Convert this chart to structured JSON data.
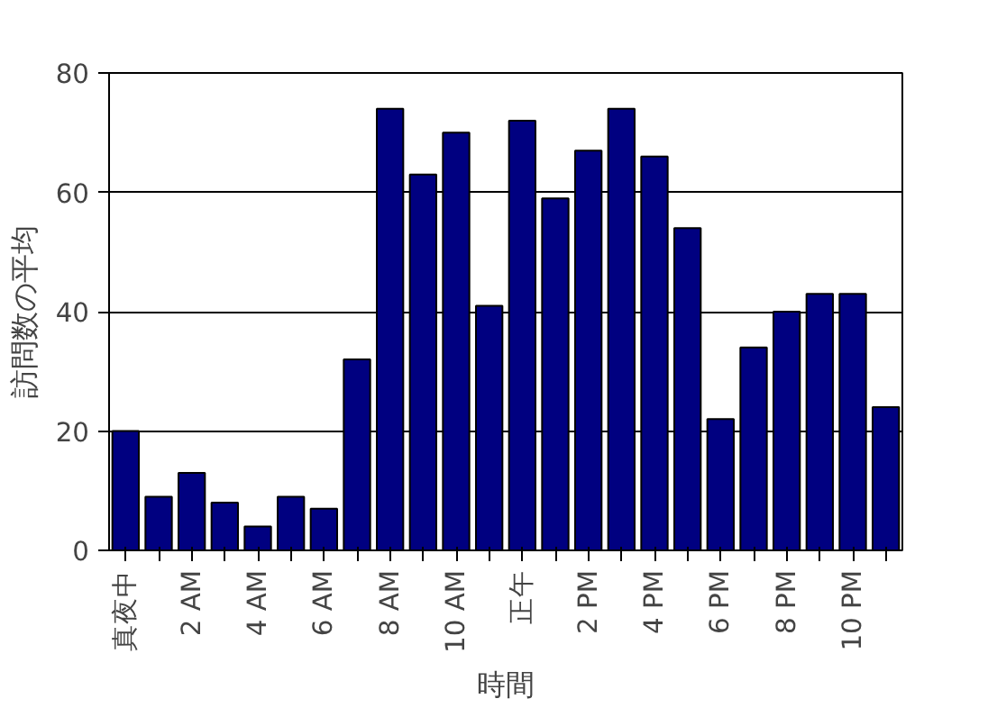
{
  "chart_data": {
    "type": "bar",
    "xlabel": "時間",
    "ylabel": "訪問数の平均",
    "categories": [
      "真夜中",
      null,
      "2 AM",
      null,
      "4 AM",
      null,
      "6 AM",
      null,
      "8 AM",
      null,
      "10 AM",
      null,
      "正午",
      null,
      "2 PM",
      null,
      "4 PM",
      null,
      "6 PM",
      null,
      "8 PM",
      null,
      "10 PM",
      null
    ],
    "values": [
      20,
      9,
      13,
      8,
      4,
      9,
      7,
      32,
      74,
      63,
      70,
      41,
      72,
      59,
      67,
      74,
      66,
      54,
      22,
      34,
      40,
      43,
      43,
      24
    ],
    "color": "#000080",
    "ylim": [
      0,
      80
    ],
    "yticks": [
      0,
      20,
      40,
      60,
      80
    ],
    "grid": "y"
  }
}
